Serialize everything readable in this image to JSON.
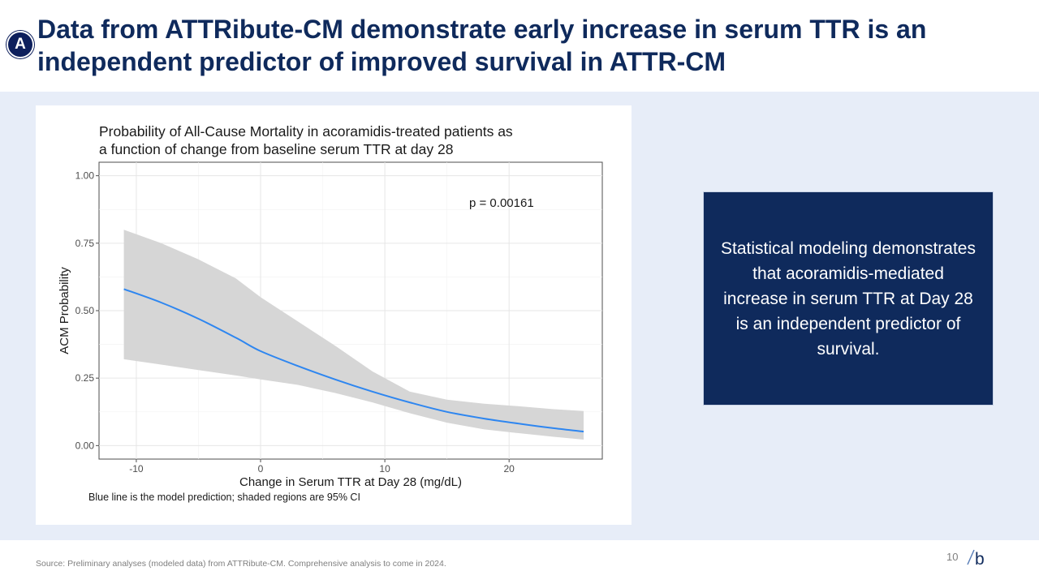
{
  "slide": {
    "badge": "A",
    "title": "Data from ATTRibute-CM demonstrate early increase in serum TTR is an independent predictor of improved survival in ATTR-CM",
    "callout": "Statistical modeling demonstrates that acoramidis-mediated increase in serum TTR at Day 28 is an independent predictor of survival.",
    "source": "Source: Preliminary analyses (modeled data) from ATTRibute-CM.  Comprehensive analysis to come in 2024.",
    "page_number": "10",
    "logo_letter": "b"
  },
  "colors": {
    "title": "#0f2a5c",
    "band": "#e7edf8",
    "callout_bg": "#0f2a5c",
    "prediction_line": "#2e86f0",
    "ci_band": "#d6d6d6"
  },
  "chart_data": {
    "type": "line",
    "title_lines": [
      "Probability of All-Cause Mortality in acoramidis-treated patients as",
      "a function of change from baseline serum TTR at day 28"
    ],
    "xlabel": "Change in Serum TTR at Day 28 (mg/dL)",
    "ylabel": "ACM Probability",
    "annotation": "p = 0.00161",
    "caption": "Blue line is the model prediction; shaded regions are 95% CI",
    "xlim": [
      -13,
      27.5
    ],
    "ylim": [
      -0.05,
      1.05
    ],
    "x_ticks": [
      -10,
      0,
      10,
      20
    ],
    "x_tick_labels": [
      "-10",
      "0",
      "10",
      "20"
    ],
    "y_ticks": [
      0,
      0.25,
      0.5,
      0.75,
      1.0
    ],
    "y_tick_labels": [
      "0.00",
      "0.25",
      "0.50",
      "0.75",
      "1.00"
    ],
    "grid": true,
    "series": [
      {
        "name": "Model prediction",
        "x": [
          -11,
          -8,
          -5,
          -2,
          0,
          3,
          6,
          9,
          12,
          15,
          18,
          21,
          23.5,
          26
        ],
        "y": [
          0.58,
          0.53,
          0.47,
          0.4,
          0.35,
          0.295,
          0.245,
          0.2,
          0.16,
          0.125,
          0.1,
          0.08,
          0.065,
          0.052
        ]
      }
    ],
    "ci_band": {
      "name": "95% CI",
      "x": [
        -11,
        -8,
        -5,
        -2,
        0,
        3,
        6,
        9,
        12,
        15,
        18,
        21,
        23.5,
        26
      ],
      "lower": [
        0.32,
        0.3,
        0.28,
        0.26,
        0.245,
        0.225,
        0.195,
        0.16,
        0.12,
        0.085,
        0.06,
        0.045,
        0.033,
        0.022
      ],
      "upper": [
        0.8,
        0.75,
        0.69,
        0.62,
        0.55,
        0.46,
        0.37,
        0.275,
        0.2,
        0.17,
        0.155,
        0.145,
        0.135,
        0.128
      ]
    }
  }
}
